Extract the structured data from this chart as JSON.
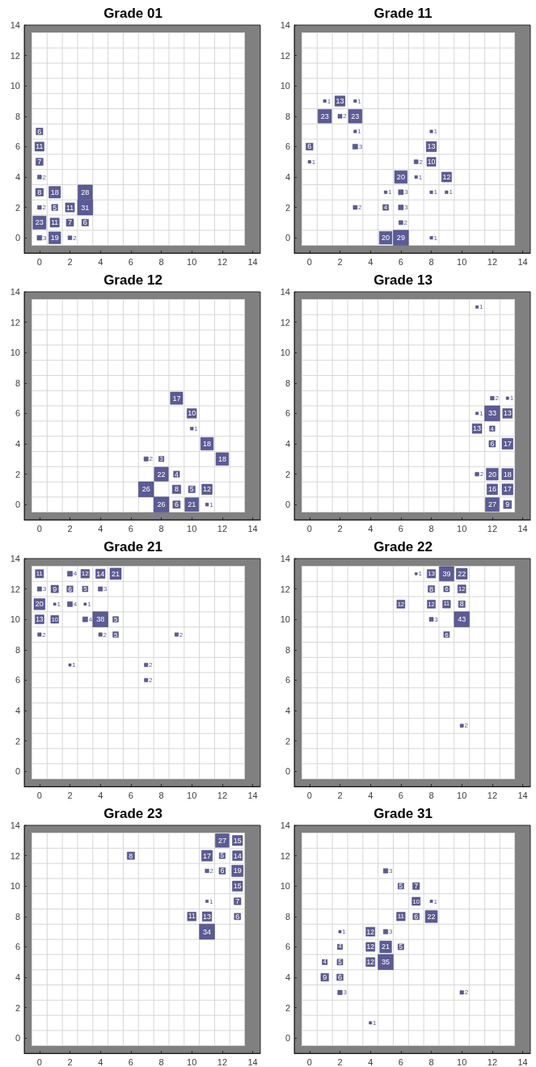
{
  "chart_data": [
    {
      "type": "bubble",
      "title": "Grade 01",
      "marker": "square",
      "color": "#5b5b96",
      "xlim": [
        -1,
        14.5
      ],
      "ylim": [
        -1,
        14
      ],
      "xticks": [
        0,
        2,
        4,
        6,
        8,
        10,
        12,
        14
      ],
      "yticks": [
        0,
        2,
        4,
        6,
        8,
        10,
        12,
        14
      ],
      "x": [
        0,
        0,
        0,
        0,
        0,
        1,
        3,
        0,
        1,
        2,
        3,
        0,
        1,
        2,
        3,
        0,
        1,
        2
      ],
      "values": [
        7,
        6,
        5,
        4,
        3,
        3,
        3,
        2,
        2,
        2,
        2,
        1,
        1,
        1,
        1,
        0,
        0,
        0
      ],
      "sizes": [
        6,
        11,
        7,
        2,
        8,
        18,
        28,
        2,
        5,
        11,
        31,
        23,
        11,
        7,
        6,
        3,
        19,
        2
      ],
      "value_labels": [
        "6",
        "11",
        "7",
        "2",
        "8",
        "18",
        "28",
        "2",
        "5",
        "11",
        "31",
        "23",
        "11",
        "7",
        "6",
        "3",
        "19",
        "2"
      ]
    },
    {
      "type": "bubble",
      "title": "Grade 11",
      "marker": "square",
      "color": "#5b5b96",
      "xlim": [
        -1,
        14.5
      ],
      "ylim": [
        -1,
        14
      ],
      "xticks": [
        0,
        2,
        4,
        6,
        8,
        10,
        12,
        14
      ],
      "yticks": [
        0,
        2,
        4,
        6,
        8,
        10,
        12,
        14
      ],
      "x": [
        1,
        2,
        3,
        1,
        2,
        3,
        3,
        8,
        0,
        3,
        8,
        0,
        7,
        8,
        6,
        7,
        9,
        5,
        6,
        8,
        9,
        3,
        5,
        6,
        6,
        5,
        6,
        8
      ],
      "values": [
        9,
        9,
        9,
        8,
        8,
        8,
        7,
        7,
        6,
        6,
        6,
        5,
        5,
        5,
        4,
        4,
        4,
        3,
        3,
        3,
        3,
        2,
        2,
        2,
        1,
        0,
        0,
        0
      ],
      "sizes": [
        1,
        13,
        1,
        23,
        2,
        23,
        1,
        1,
        6,
        3,
        13,
        1,
        2,
        10,
        20,
        1,
        12,
        1,
        3,
        1,
        1,
        2,
        4,
        3,
        2,
        20,
        29,
        1
      ],
      "value_labels": [
        "1",
        "13",
        "1",
        "23",
        "2",
        "23",
        "1",
        "1",
        "6",
        "3",
        "13",
        "1",
        "2",
        "10",
        "20",
        "1",
        "12",
        "1",
        "3",
        "1",
        "1",
        "2",
        "4",
        "3",
        "2",
        "20",
        "29",
        "1"
      ]
    },
    {
      "type": "bubble",
      "title": "Grade 12",
      "marker": "square",
      "color": "#5b5b96",
      "xlim": [
        -1,
        14.5
      ],
      "ylim": [
        -1,
        14
      ],
      "xticks": [
        0,
        2,
        4,
        6,
        8,
        10,
        12,
        14
      ],
      "yticks": [
        0,
        2,
        4,
        6,
        8,
        10,
        12,
        14
      ],
      "x": [
        9,
        10,
        10,
        11,
        7,
        8,
        12,
        8,
        9,
        7,
        9,
        10,
        11,
        8,
        9,
        10,
        11
      ],
      "values": [
        7,
        6,
        5,
        4,
        3,
        3,
        3,
        2,
        2,
        1,
        1,
        1,
        1,
        0,
        0,
        0,
        0
      ],
      "sizes": [
        17,
        10,
        1,
        18,
        2,
        3,
        18,
        22,
        4,
        26,
        8,
        5,
        12,
        26,
        6,
        21,
        1
      ],
      "value_labels": [
        "17",
        "10",
        "1",
        "18",
        "2",
        "3",
        "18",
        "22",
        "4",
        "26",
        "8",
        "5",
        "12",
        "26",
        "6",
        "21",
        "1"
      ]
    },
    {
      "type": "bubble",
      "title": "Grade 13",
      "marker": "square",
      "color": "#5b5b96",
      "xlim": [
        -1,
        14.5
      ],
      "ylim": [
        -1,
        14
      ],
      "xticks": [
        0,
        2,
        4,
        6,
        8,
        10,
        12,
        14
      ],
      "yticks": [
        0,
        2,
        4,
        6,
        8,
        10,
        12,
        14
      ],
      "x": [
        11,
        12,
        13,
        11,
        12,
        13,
        11,
        12,
        12,
        13,
        11,
        12,
        13,
        12,
        13,
        12,
        13
      ],
      "values": [
        13,
        7,
        7,
        6,
        6,
        6,
        5,
        5,
        4,
        4,
        2,
        2,
        2,
        1,
        1,
        0,
        0
      ],
      "sizes": [
        1,
        2,
        1,
        1,
        33,
        13,
        13,
        4,
        6,
        17,
        2,
        20,
        18,
        16,
        17,
        27,
        9
      ],
      "value_labels": [
        "1",
        "2",
        "1",
        "1",
        "33",
        "13",
        "13",
        "4",
        "6",
        "17",
        "2",
        "20",
        "18",
        "16",
        "17",
        "27",
        "9"
      ]
    },
    {
      "type": "bubble",
      "title": "Grade 21",
      "marker": "square",
      "color": "#5b5b96",
      "xlim": [
        -1,
        14.5
      ],
      "ylim": [
        -1,
        14
      ],
      "xticks": [
        0,
        2,
        4,
        6,
        8,
        10,
        12,
        14
      ],
      "yticks": [
        0,
        2,
        4,
        6,
        8,
        10,
        12,
        14
      ],
      "x": [
        0,
        2,
        3,
        4,
        5,
        0,
        1,
        2,
        3,
        4,
        0,
        1,
        2,
        3,
        0,
        1,
        3,
        4,
        5,
        0,
        4,
        5,
        9,
        2,
        7,
        7
      ],
      "values": [
        13,
        13,
        13,
        13,
        13,
        12,
        12,
        12,
        12,
        12,
        11,
        11,
        11,
        11,
        10,
        10,
        10,
        10,
        10,
        9,
        9,
        9,
        9,
        7,
        7,
        6
      ],
      "sizes": [
        11,
        4,
        12,
        14,
        21,
        3,
        9,
        6,
        5,
        3,
        20,
        1,
        4,
        1,
        13,
        10,
        4,
        38,
        5,
        2,
        2,
        5,
        2,
        1,
        2,
        2
      ],
      "value_labels": [
        "11",
        "4",
        "12",
        "14",
        "21",
        "3",
        "9",
        "6",
        "5",
        "3",
        "20",
        "1",
        "4",
        "1",
        "13",
        "10",
        "4",
        "38",
        "5",
        "2",
        "2",
        "5",
        "2",
        "1",
        "2",
        "2"
      ]
    },
    {
      "type": "bubble",
      "title": "Grade 22",
      "marker": "square",
      "color": "#5b5b96",
      "xlim": [
        -1,
        14.5
      ],
      "ylim": [
        -1,
        14
      ],
      "xticks": [
        0,
        2,
        4,
        6,
        8,
        10,
        12,
        14
      ],
      "yticks": [
        0,
        2,
        4,
        6,
        8,
        10,
        12,
        14
      ],
      "x": [
        7,
        8,
        9,
        10,
        8,
        9,
        10,
        6,
        8,
        9,
        10,
        8,
        10,
        9,
        10
      ],
      "values": [
        13,
        13,
        13,
        13,
        12,
        12,
        12,
        11,
        11,
        11,
        11,
        10,
        10,
        9,
        3
      ],
      "sizes": [
        1,
        13,
        39,
        22,
        8,
        6,
        12,
        12,
        12,
        11,
        8,
        3,
        43,
        6,
        2
      ],
      "value_labels": [
        "1",
        "13",
        "39",
        "22",
        "8",
        "6",
        "12",
        "12",
        "12",
        "11",
        "8",
        "3",
        "43",
        "6",
        "2"
      ]
    },
    {
      "type": "bubble",
      "title": "Grade 23",
      "marker": "square",
      "color": "#5b5b96",
      "xlim": [
        -1,
        14.5
      ],
      "ylim": [
        -1,
        14
      ],
      "xticks": [
        0,
        2,
        4,
        6,
        8,
        10,
        12,
        14
      ],
      "yticks": [
        0,
        2,
        4,
        6,
        8,
        10,
        12,
        14
      ],
      "x": [
        12,
        13,
        6,
        11,
        12,
        13,
        11,
        12,
        13,
        13,
        11,
        13,
        10,
        11,
        13,
        11
      ],
      "values": [
        13,
        13,
        12,
        12,
        12,
        12,
        11,
        11,
        11,
        10,
        9,
        9,
        8,
        8,
        8,
        7
      ],
      "sizes": [
        27,
        15,
        8,
        17,
        5,
        14,
        2,
        6,
        19,
        15,
        1,
        7,
        11,
        13,
        6,
        34
      ],
      "value_labels": [
        "27",
        "15",
        "8",
        "17",
        "5",
        "14",
        "2",
        "6",
        "19",
        "15",
        "1",
        "7",
        "11",
        "13",
        "6",
        "34"
      ]
    },
    {
      "type": "bubble",
      "title": "Grade 31",
      "marker": "square",
      "color": "#5b5b96",
      "xlim": [
        -1,
        14.5
      ],
      "ylim": [
        -1,
        14
      ],
      "xticks": [
        0,
        2,
        4,
        6,
        8,
        10,
        12,
        14
      ],
      "yticks": [
        0,
        2,
        4,
        6,
        8,
        10,
        12,
        14
      ],
      "x": [
        5,
        6,
        7,
        7,
        8,
        6,
        7,
        8,
        2,
        4,
        5,
        2,
        4,
        5,
        6,
        1,
        2,
        4,
        5,
        1,
        2,
        2,
        10,
        4
      ],
      "values": [
        11,
        10,
        10,
        9,
        9,
        8,
        8,
        8,
        7,
        7,
        7,
        6,
        6,
        6,
        6,
        5,
        5,
        5,
        5,
        4,
        4,
        3,
        3,
        1
      ],
      "sizes": [
        3,
        5,
        7,
        10,
        1,
        11,
        6,
        22,
        1,
        12,
        3,
        4,
        12,
        21,
        5,
        4,
        5,
        12,
        35,
        9,
        6,
        3,
        2,
        1
      ],
      "value_labels": [
        "3",
        "5",
        "7",
        "10",
        "1",
        "11",
        "6",
        "22",
        "1",
        "12",
        "3",
        "4",
        "12",
        "21",
        "5",
        "4",
        "5",
        "12",
        "35",
        "9",
        "6",
        "3",
        "2",
        "1"
      ]
    }
  ]
}
